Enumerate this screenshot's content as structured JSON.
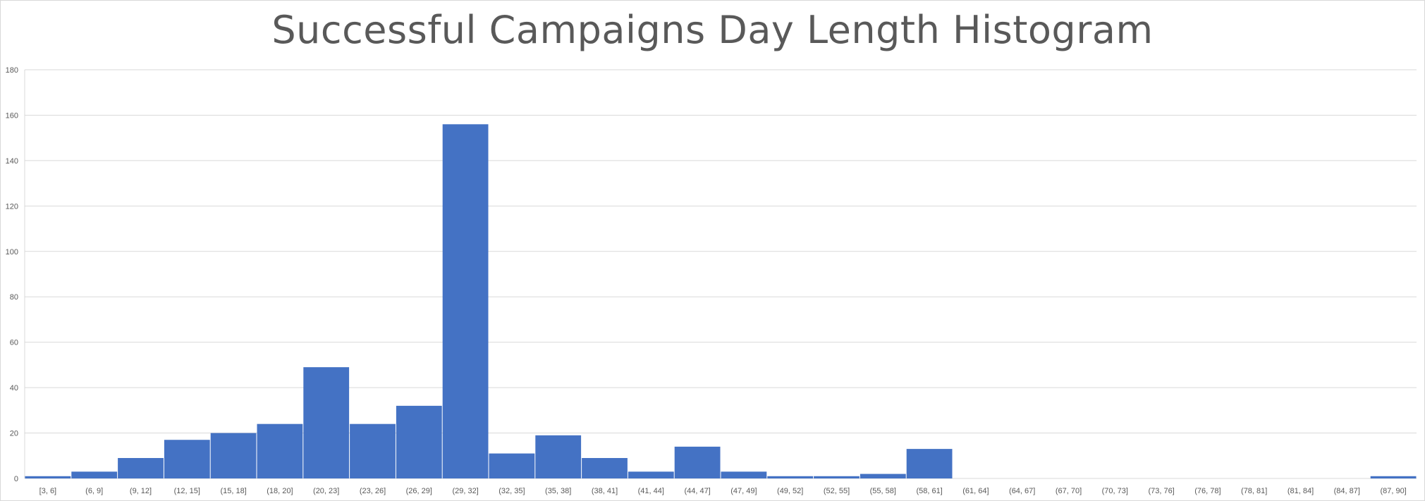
{
  "chart_data": {
    "type": "bar",
    "title": "Successful Campaigns Day Length Histogram",
    "xlabel": "",
    "ylabel": "",
    "ylim": [
      0,
      180
    ],
    "yticks": [
      0,
      20,
      40,
      60,
      80,
      100,
      120,
      140,
      160,
      180
    ],
    "grid": true,
    "bar_color": "#4472c4",
    "grid_color": "#d9d9d9",
    "categories": [
      "[3, 6]",
      "(6, 9]",
      "(9, 12]",
      "(12, 15]",
      "(15, 18]",
      "(18, 20]",
      "(20, 23]",
      "(23, 26]",
      "(26, 29]",
      "(29, 32]",
      "(32, 35]",
      "(35, 38]",
      "(38, 41]",
      "(41, 44]",
      "(44, 47]",
      "(47, 49]",
      "(49, 52]",
      "(52, 55]",
      "(55, 58]",
      "(58, 61]",
      "(61, 64]",
      "(64, 67]",
      "(67, 70]",
      "(70, 73]",
      "(73, 76]",
      "(76, 78]",
      "(78, 81]",
      "(81, 84]",
      "(84, 87]",
      "(87, 90]"
    ],
    "values": [
      1,
      3,
      9,
      17,
      20,
      24,
      49,
      24,
      32,
      156,
      11,
      19,
      9,
      3,
      14,
      3,
      1,
      1,
      2,
      13,
      0,
      0,
      0,
      0,
      0,
      0,
      0,
      0,
      0,
      1
    ]
  }
}
